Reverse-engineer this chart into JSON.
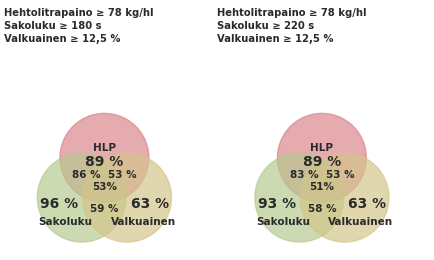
{
  "left_title": "Hehtolitrapaino ≥ 78 kg/hl\nSakoluku ≥ 180 s\nValkuainen ≥ 12,5 %",
  "right_title": "Hehtolitrapaino ≥ 78 kg/hl\nSakoluku ≥ 220 s\nValkuainen ≥ 12,5 %",
  "left_diagram": {
    "hlp_label": "HLP",
    "hlp_pct": "89 %",
    "sakoluku_pct": "96 %",
    "sakoluku_label": "Sakoluku",
    "valkuainen_pct": "63 %",
    "valkuainen_label": "Valkuainen",
    "hlp_sak_pct": "86 %",
    "hlp_val_pct": "53 %",
    "sak_val_pct": "59 %",
    "all_pct": "53%"
  },
  "right_diagram": {
    "hlp_label": "HLP",
    "hlp_pct": "89 %",
    "sakoluku_pct": "93 %",
    "sakoluku_label": "Sakoluku",
    "valkuainen_pct": "63 %",
    "valkuainen_label": "Valkuainen",
    "hlp_sak_pct": "83 %",
    "hlp_val_pct": "53 %",
    "sak_val_pct": "58 %",
    "all_pct": "51%"
  },
  "hlp_color": "#d9848a",
  "sakoluku_color": "#b5c98e",
  "valkuainen_color": "#d4c48a",
  "alpha": 0.68,
  "title_fontsize": 7.2,
  "label_fontsize": 7.5,
  "pct_fontsize_large": 10,
  "pct_fontsize_small": 7.5,
  "name_fontsize": 7.5,
  "text_color": "#2a2a2a"
}
